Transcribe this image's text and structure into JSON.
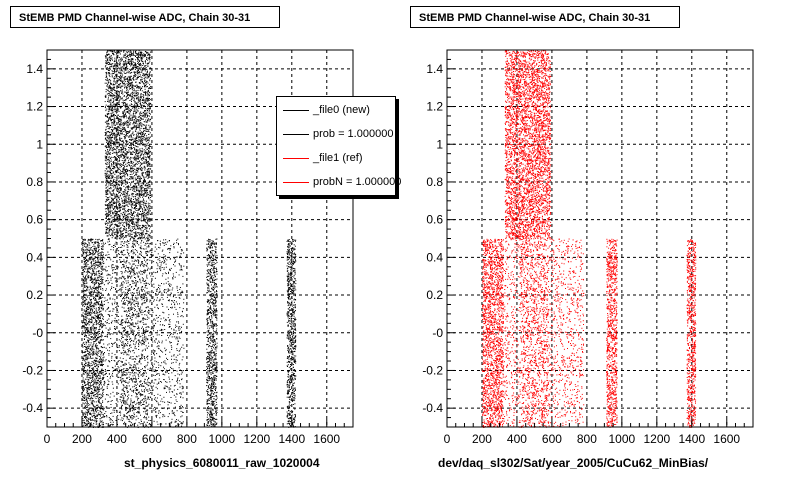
{
  "chart_data": [
    {
      "type": "scatter",
      "title": "StEMB PMD Channel-wise ADC, Chain 30-31",
      "xlabel": "st_physics_6080011_raw_1020004",
      "ylabel": "",
      "xlim": [
        0,
        1750
      ],
      "ylim": [
        -0.5,
        1.5
      ],
      "xticks": [
        "0",
        "200",
        "400",
        "600",
        "800",
        "1000",
        "1200",
        "1400",
        "1600"
      ],
      "yticks": [
        "-0.4",
        "-0.2",
        "-0",
        "0.2",
        "0.4",
        "0.6",
        "0.8",
        "1",
        "1.2",
        "1.4"
      ],
      "grid": true,
      "color": "#000000",
      "bands": [
        {
          "x": [
            200,
            320
          ],
          "y": [
            -0.5,
            0.5
          ],
          "density": "high"
        },
        {
          "x": [
            320,
            420
          ],
          "y": [
            -0.5,
            0.5
          ],
          "density": "low"
        },
        {
          "x": [
            420,
            580
          ],
          "y": [
            -0.5,
            0.5
          ],
          "density": "medium"
        },
        {
          "x": [
            580,
            780
          ],
          "y": [
            -0.5,
            0.5
          ],
          "density": "low"
        },
        {
          "x": [
            330,
            590
          ],
          "y": [
            0.5,
            1.5
          ],
          "density": "high"
        },
        {
          "x": [
            910,
            970
          ],
          "y": [
            -0.5,
            0.5
          ],
          "density": "high"
        },
        {
          "x": [
            1370,
            1420
          ],
          "y": [
            -0.5,
            0.5
          ],
          "density": "high"
        }
      ],
      "legend": {
        "placement": "top-right",
        "entries": [
          {
            "label": "_file0 (new)",
            "color": "#000000"
          },
          {
            "label": "prob = 1.000000",
            "color": "#000000"
          },
          {
            "label": "_file1 (ref)",
            "color": "#ff0000"
          },
          {
            "label": "probN = 1.000000",
            "color": "#ff0000"
          }
        ]
      }
    },
    {
      "type": "scatter",
      "title": "StEMB PMD Channel-wise ADC, Chain 30-31",
      "xlabel": "dev/daq_sl302/Sat/year_2005/CuCu62_MinBias/",
      "ylabel": "",
      "xlim": [
        0,
        1750
      ],
      "ylim": [
        -0.5,
        1.5
      ],
      "xticks": [
        "0",
        "200",
        "400",
        "600",
        "800",
        "1000",
        "1200",
        "1400",
        "1600"
      ],
      "yticks": [
        "-0.4",
        "-0.2",
        "-0",
        "0.2",
        "0.4",
        "0.6",
        "0.8",
        "1",
        "1.2",
        "1.4"
      ],
      "grid": true,
      "color": "#ff0000",
      "bands": [
        {
          "x": [
            200,
            320
          ],
          "y": [
            -0.5,
            0.5
          ],
          "density": "high"
        },
        {
          "x": [
            320,
            420
          ],
          "y": [
            -0.5,
            0.5
          ],
          "density": "low"
        },
        {
          "x": [
            420,
            580
          ],
          "y": [
            -0.5,
            0.5
          ],
          "density": "medium"
        },
        {
          "x": [
            580,
            780
          ],
          "y": [
            -0.5,
            0.5
          ],
          "density": "low"
        },
        {
          "x": [
            330,
            590
          ],
          "y": [
            0.5,
            1.5
          ],
          "density": "high"
        },
        {
          "x": [
            910,
            970
          ],
          "y": [
            -0.5,
            0.5
          ],
          "density": "high"
        },
        {
          "x": [
            1370,
            1420
          ],
          "y": [
            -0.5,
            0.5
          ],
          "density": "high"
        }
      ]
    }
  ]
}
